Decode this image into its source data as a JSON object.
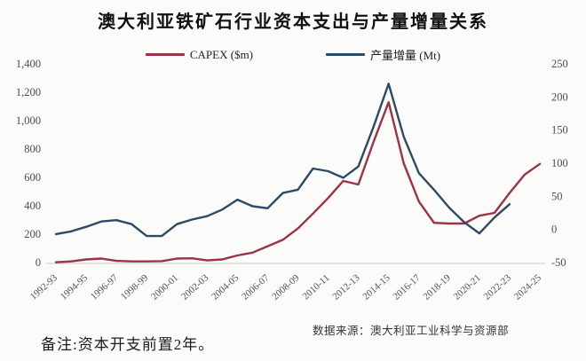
{
  "chart": {
    "title": "澳大利亚铁矿石行业资本支出与产量增量关系"
  },
  "footer": {
    "note": "备注:资本开支前置2年。",
    "source": "数据来源：澳大利亚工业科学与资源部"
  },
  "chart_data": {
    "type": "line",
    "title": "澳大利亚铁矿石行业资本支出与产量增量关系",
    "x": [
      "1992-93",
      "1993-94",
      "1994-95",
      "1995-96",
      "1996-97",
      "1997-98",
      "1998-99",
      "1999-00",
      "2000-01",
      "2001-02",
      "2002-03",
      "2003-04",
      "2004-05",
      "2005-06",
      "2006-07",
      "2007-08",
      "2008-09",
      "2009-10",
      "2010-11",
      "2011-12",
      "2012-13",
      "2013-14",
      "2014-15",
      "2015-16",
      "2016-17",
      "2017-18",
      "2018-19",
      "2019-20",
      "2020-21",
      "2021-22",
      "2022-23",
      "2023-24",
      "2024-25"
    ],
    "x_tick_labels": [
      "1992-93",
      "1994-95",
      "1996-97",
      "1998-99",
      "2000-01",
      "2002-03",
      "2004-05",
      "2006-07",
      "2008-09",
      "2010-11",
      "2012-13",
      "2014-15",
      "2016-17",
      "2018-19",
      "2020-21",
      "2022-23",
      "2024-25"
    ],
    "series": [
      {
        "name": "CAPEX ($m)",
        "axis": "left",
        "color": "#9c3246",
        "values": [
          2,
          8,
          22,
          28,
          12,
          8,
          8,
          10,
          28,
          30,
          15,
          22,
          50,
          70,
          115,
          160,
          240,
          345,
          455,
          575,
          550,
          850,
          1130,
          700,
          430,
          280,
          275,
          275,
          330,
          350,
          490,
          620,
          695
        ]
      },
      {
        "name": "产量增量 (Mt)",
        "axis": "right",
        "color": "#2b4a63",
        "values": [
          -7,
          -3,
          4,
          12,
          14,
          8,
          -10,
          -10,
          8,
          15,
          20,
          30,
          45,
          35,
          32,
          55,
          60,
          92,
          88,
          78,
          95,
          155,
          220,
          140,
          85,
          60,
          33,
          11,
          -6,
          18,
          38,
          null,
          null
        ]
      }
    ],
    "left_axis": {
      "min": 0,
      "max": 1400,
      "tick_values": [
        1400,
        1200,
        1000,
        800,
        600,
        400,
        200,
        0
      ],
      "tick_labels": [
        "1,400",
        "1,200",
        "1,000",
        "800",
        "600",
        "400",
        "200",
        "0"
      ]
    },
    "right_axis": {
      "min": -50,
      "max": 250,
      "tick_values": [
        250,
        200,
        150,
        100,
        50,
        0,
        -50
      ],
      "tick_labels": [
        "250",
        "200",
        "150",
        "100",
        "50",
        "0",
        "-50"
      ]
    },
    "grid": false,
    "legend_position": "top"
  }
}
